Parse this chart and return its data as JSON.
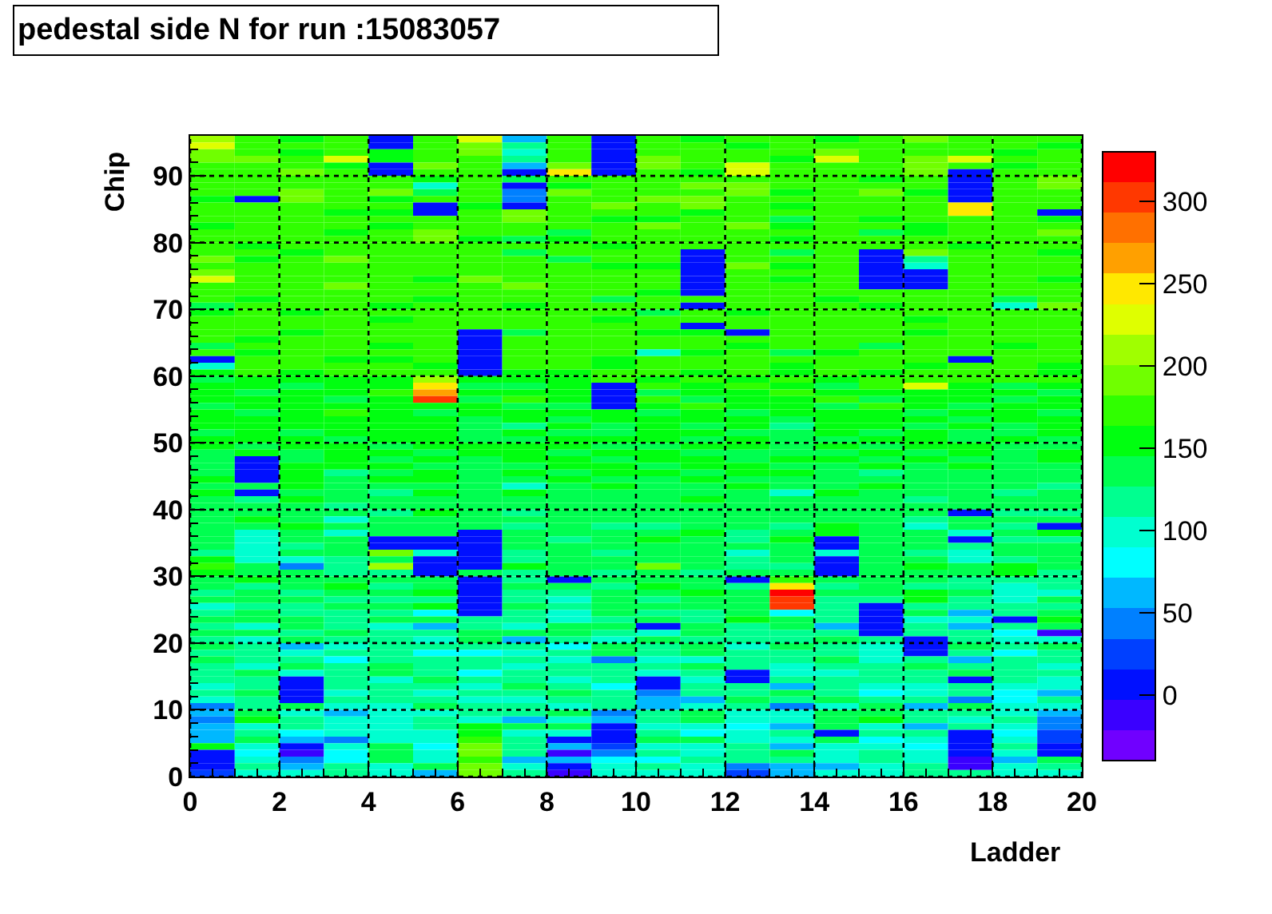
{
  "chart_data": {
    "type": "heatmap",
    "title": "pedestal side N for run :15083057",
    "xlabel": "Ladder",
    "ylabel": "Chip",
    "x": [
      0.5,
      1.5,
      2.5,
      3.5,
      4.5,
      5.5,
      6.5,
      7.5,
      8.5,
      9.5,
      10.5,
      11.5,
      12.5,
      13.5,
      14.5,
      15.5,
      16.5,
      17.5,
      18.5,
      19.5
    ],
    "xlim": [
      0,
      20
    ],
    "xticks": [
      0,
      2,
      4,
      6,
      8,
      10,
      12,
      14,
      16,
      18,
      20
    ],
    "ylim": [
      0,
      96
    ],
    "yticks": [
      0,
      10,
      20,
      30,
      40,
      50,
      60,
      70,
      80,
      90
    ],
    "clim": [
      -40,
      330
    ],
    "cticks": [
      0,
      50,
      100,
      150,
      200,
      250,
      300
    ],
    "grid": true,
    "cells": [
      [
        210,
        175,
        160,
        175,
        0,
        170,
        230,
        60,
        170,
        0,
        165,
        160,
        165,
        175,
        160,
        170,
        190,
        165,
        175,
        165
      ],
      [
        230,
        180,
        165,
        170,
        0,
        175,
        200,
        110,
        165,
        0,
        180,
        175,
        160,
        165,
        170,
        165,
        180,
        170,
        165,
        160
      ],
      [
        200,
        170,
        160,
        180,
        160,
        165,
        190,
        90,
        175,
        0,
        175,
        170,
        170,
        165,
        185,
        175,
        180,
        175,
        160,
        165
      ],
      [
        190,
        185,
        170,
        230,
        155,
        165,
        180,
        120,
        165,
        0,
        200,
        170,
        175,
        160,
        220,
        170,
        200,
        220,
        170,
        165
      ],
      [
        175,
        170,
        165,
        160,
        0,
        200,
        175,
        60,
        185,
        0,
        190,
        165,
        230,
        165,
        175,
        165,
        185,
        165,
        160,
        170
      ],
      [
        170,
        175,
        200,
        175,
        0,
        180,
        180,
        0,
        240,
        0,
        175,
        160,
        220,
        170,
        170,
        170,
        200,
        0,
        170,
        165
      ],
      [
        165,
        170,
        175,
        170,
        165,
        160,
        170,
        140,
        165,
        165,
        165,
        175,
        175,
        170,
        165,
        160,
        165,
        0,
        165,
        190
      ],
      [
        180,
        165,
        170,
        165,
        175,
        100,
        175,
        0,
        160,
        170,
        175,
        190,
        190,
        165,
        170,
        175,
        180,
        0,
        165,
        185
      ],
      [
        175,
        165,
        200,
        180,
        185,
        140,
        165,
        50,
        190,
        165,
        180,
        175,
        195,
        160,
        165,
        190,
        160,
        0,
        165,
        180
      ],
      [
        160,
        0,
        200,
        175,
        160,
        170,
        170,
        40,
        175,
        180,
        190,
        195,
        165,
        165,
        175,
        170,
        165,
        0,
        170,
        170
      ],
      [
        170,
        165,
        175,
        170,
        165,
        0,
        160,
        0,
        175,
        185,
        165,
        185,
        170,
        160,
        170,
        165,
        180,
        240,
        175,
        175
      ],
      [
        165,
        170,
        165,
        160,
        160,
        0,
        180,
        200,
        170,
        165,
        170,
        160,
        165,
        170,
        180,
        175,
        165,
        240,
        170,
        0
      ],
      [
        170,
        175,
        170,
        165,
        175,
        165,
        165,
        190,
        165,
        160,
        160,
        165,
        170,
        140,
        165,
        160,
        175,
        180,
        165,
        160
      ],
      [
        160,
        170,
        165,
        170,
        160,
        170,
        170,
        175,
        165,
        170,
        190,
        165,
        185,
        160,
        175,
        170,
        160,
        170,
        165,
        170
      ],
      [
        175,
        165,
        175,
        160,
        170,
        190,
        175,
        165,
        140,
        165,
        175,
        175,
        170,
        165,
        180,
        140,
        160,
        165,
        170,
        200
      ],
      [
        165,
        175,
        170,
        165,
        175,
        200,
        160,
        140,
        150,
        170,
        165,
        180,
        175,
        160,
        170,
        165,
        170,
        165,
        170,
        165
      ],
      [
        170,
        160,
        165,
        175,
        165,
        165,
        175,
        165,
        165,
        160,
        170,
        165,
        175,
        165,
        165,
        170,
        175,
        160,
        175,
        170
      ],
      [
        175,
        165,
        160,
        165,
        170,
        175,
        165,
        140,
        165,
        170,
        170,
        0,
        170,
        140,
        170,
        0,
        185,
        170,
        165,
        160
      ],
      [
        190,
        150,
        170,
        190,
        165,
        175,
        175,
        175,
        140,
        165,
        165,
        0,
        175,
        165,
        175,
        0,
        120,
        165,
        170,
        165
      ],
      [
        170,
        165,
        165,
        175,
        175,
        165,
        165,
        165,
        165,
        160,
        150,
        0,
        185,
        160,
        170,
        0,
        100,
        175,
        165,
        170
      ],
      [
        200,
        175,
        170,
        165,
        170,
        170,
        165,
        165,
        170,
        170,
        165,
        0,
        175,
        165,
        175,
        0,
        0,
        170,
        165,
        165
      ],
      [
        230,
        170,
        175,
        170,
        165,
        160,
        200,
        175,
        165,
        165,
        175,
        0,
        170,
        160,
        165,
        0,
        0,
        165,
        175,
        160
      ],
      [
        180,
        165,
        170,
        185,
        165,
        165,
        175,
        190,
        170,
        175,
        170,
        0,
        165,
        170,
        170,
        0,
        0,
        165,
        165,
        180
      ],
      [
        170,
        175,
        165,
        175,
        170,
        165,
        170,
        175,
        165,
        165,
        160,
        0,
        165,
        175,
        165,
        175,
        175,
        170,
        170,
        165
      ],
      [
        165,
        160,
        175,
        165,
        175,
        160,
        165,
        165,
        170,
        140,
        170,
        175,
        165,
        165,
        160,
        175,
        170,
        165,
        130,
        165
      ],
      [
        140,
        170,
        165,
        175,
        150,
        165,
        165,
        160,
        165,
        165,
        175,
        0,
        165,
        170,
        165,
        160,
        165,
        175,
        100,
        190
      ],
      [
        160,
        165,
        160,
        175,
        170,
        165,
        170,
        165,
        170,
        165,
        130,
        165,
        160,
        165,
        175,
        165,
        175,
        165,
        175,
        175
      ],
      [
        170,
        165,
        170,
        175,
        160,
        165,
        175,
        165,
        165,
        160,
        165,
        170,
        170,
        165,
        170,
        165,
        160,
        165,
        170,
        165
      ],
      [
        165,
        175,
        165,
        170,
        165,
        165,
        170,
        165,
        175,
        170,
        165,
        0,
        165,
        175,
        165,
        165,
        165,
        175,
        165,
        170
      ],
      [
        170,
        165,
        160,
        165,
        175,
        170,
        0,
        140,
        165,
        165,
        160,
        160,
        0,
        165,
        165,
        165,
        160,
        175,
        170,
        165
      ],
      [
        165,
        160,
        165,
        170,
        165,
        165,
        0,
        165,
        170,
        165,
        175,
        170,
        165,
        165,
        170,
        175,
        165,
        165,
        165,
        170
      ],
      [
        140,
        165,
        175,
        165,
        160,
        170,
        0,
        170,
        165,
        170,
        165,
        165,
        160,
        165,
        165,
        140,
        165,
        165,
        160,
        165
      ],
      [
        175,
        145,
        165,
        170,
        165,
        165,
        0,
        165,
        165,
        175,
        100,
        160,
        165,
        140,
        160,
        165,
        165,
        170,
        165,
        165
      ],
      [
        0,
        165,
        170,
        160,
        160,
        165,
        0,
        165,
        170,
        160,
        165,
        165,
        170,
        165,
        165,
        165,
        165,
        0,
        165,
        165
      ],
      [
        90,
        170,
        165,
        165,
        165,
        155,
        0,
        165,
        165,
        150,
        165,
        170,
        165,
        160,
        165,
        165,
        160,
        165,
        165,
        150
      ],
      [
        150,
        165,
        160,
        170,
        165,
        180,
        0,
        150,
        160,
        165,
        165,
        160,
        165,
        160,
        165,
        160,
        165,
        165,
        165,
        160
      ],
      [
        140,
        155,
        145,
        155,
        150,
        210,
        145,
        145,
        150,
        170,
        160,
        165,
        145,
        165,
        160,
        165,
        180,
        165,
        170,
        175
      ],
      [
        160,
        150,
        140,
        145,
        150,
        240,
        140,
        140,
        145,
        0,
        165,
        145,
        165,
        150,
        140,
        165,
        230,
        150,
        140,
        150
      ],
      [
        145,
        140,
        145,
        150,
        165,
        270,
        145,
        150,
        150,
        0,
        140,
        160,
        150,
        165,
        160,
        150,
        150,
        160,
        150,
        140
      ],
      [
        150,
        155,
        160,
        140,
        160,
        310,
        140,
        165,
        150,
        0,
        165,
        140,
        160,
        160,
        165,
        140,
        150,
        155,
        140,
        160
      ],
      [
        140,
        160,
        145,
        150,
        150,
        160,
        155,
        140,
        140,
        0,
        150,
        165,
        150,
        150,
        140,
        165,
        160,
        140,
        150,
        145
      ],
      [
        145,
        140,
        150,
        165,
        145,
        140,
        150,
        150,
        145,
        150,
        140,
        150,
        140,
        145,
        160,
        150,
        140,
        145,
        150,
        140
      ],
      [
        150,
        145,
        160,
        150,
        155,
        150,
        140,
        145,
        140,
        145,
        160,
        145,
        150,
        140,
        150,
        145,
        150,
        140,
        145,
        150
      ],
      [
        160,
        150,
        150,
        145,
        160,
        150,
        140,
        125,
        160,
        130,
        150,
        140,
        155,
        125,
        145,
        150,
        140,
        145,
        140,
        145
      ],
      [
        140,
        145,
        140,
        150,
        155,
        145,
        135,
        145,
        140,
        140,
        145,
        150,
        140,
        140,
        150,
        140,
        145,
        135,
        140,
        150
      ],
      [
        145,
        150,
        145,
        140,
        145,
        150,
        140,
        140,
        145,
        150,
        150,
        140,
        145,
        135,
        140,
        145,
        150,
        140,
        150,
        140
      ],
      [
        150,
        140,
        150,
        145,
        140,
        145,
        150,
        145,
        150,
        140,
        140,
        145,
        150,
        140,
        145,
        140,
        145,
        145,
        140,
        130
      ],
      [
        140,
        145,
        140,
        150,
        150,
        140,
        145,
        150,
        140,
        145,
        145,
        140,
        140,
        130,
        140,
        150,
        140,
        150,
        135,
        145
      ],
      [
        130,
        0,
        140,
        150,
        140,
        150,
        140,
        145,
        145,
        140,
        150,
        150,
        140,
        145,
        150,
        140,
        145,
        140,
        140,
        150
      ],
      [
        135,
        0,
        150,
        145,
        145,
        140,
        135,
        140,
        150,
        150,
        140,
        145,
        145,
        140,
        140,
        145,
        140,
        145,
        140,
        130
      ],
      [
        140,
        0,
        145,
        110,
        140,
        145,
        140,
        150,
        140,
        145,
        145,
        140,
        150,
        150,
        140,
        125,
        140,
        140,
        135,
        140
      ],
      [
        145,
        0,
        150,
        135,
        145,
        145,
        130,
        140,
        145,
        135,
        140,
        145,
        140,
        140,
        135,
        130,
        135,
        140,
        140,
        135
      ],
      [
        130,
        140,
        145,
        140,
        130,
        140,
        140,
        100,
        140,
        145,
        130,
        135,
        145,
        130,
        140,
        145,
        140,
        135,
        130,
        125
      ],
      [
        150,
        0,
        140,
        130,
        125,
        150,
        135,
        150,
        140,
        135,
        140,
        140,
        135,
        100,
        145,
        140,
        130,
        140,
        120,
        140
      ],
      [
        140,
        125,
        145,
        140,
        140,
        140,
        140,
        140,
        135,
        140,
        135,
        145,
        130,
        140,
        135,
        140,
        125,
        130,
        140,
        135
      ],
      [
        130,
        135,
        140,
        120,
        135,
        140,
        135,
        135,
        140,
        140,
        140,
        140,
        135,
        135,
        135,
        140,
        140,
        140,
        135,
        130
      ],
      [
        140,
        130,
        135,
        130,
        125,
        145,
        135,
        120,
        135,
        130,
        130,
        135,
        135,
        130,
        140,
        140,
        130,
        0,
        125,
        115
      ],
      [
        135,
        150,
        140,
        100,
        135,
        140,
        135,
        130,
        140,
        130,
        135,
        140,
        140,
        135,
        140,
        135,
        125,
        135,
        130,
        130
      ],
      [
        130,
        140,
        145,
        130,
        140,
        130,
        130,
        125,
        135,
        120,
        125,
        130,
        130,
        115,
        145,
        130,
        100,
        135,
        125,
        0
      ],
      [
        140,
        95,
        135,
        95,
        130,
        140,
        0,
        140,
        130,
        135,
        140,
        145,
        125,
        130,
        145,
        130,
        135,
        95,
        140,
        150
      ],
      [
        130,
        100,
        130,
        130,
        0,
        0,
        0,
        135,
        125,
        140,
        145,
        130,
        110,
        145,
        0,
        130,
        130,
        0,
        125,
        110
      ],
      [
        140,
        100,
        125,
        130,
        0,
        0,
        0,
        130,
        135,
        130,
        140,
        135,
        130,
        140,
        0,
        135,
        135,
        120,
        130,
        140
      ],
      [
        125,
        100,
        130,
        130,
        195,
        100,
        0,
        125,
        130,
        120,
        135,
        140,
        100,
        135,
        90,
        140,
        120,
        100,
        135,
        140
      ],
      [
        150,
        100,
        100,
        125,
        140,
        0,
        0,
        120,
        130,
        130,
        135,
        140,
        120,
        130,
        0,
        130,
        135,
        100,
        120,
        130
      ],
      [
        170,
        140,
        50,
        120,
        210,
        0,
        0,
        145,
        140,
        130,
        185,
        135,
        125,
        125,
        0,
        135,
        150,
        140,
        160,
        130
      ],
      [
        150,
        135,
        130,
        125,
        110,
        0,
        130,
        125,
        140,
        125,
        135,
        125,
        130,
        135,
        0,
        140,
        130,
        135,
        150,
        125
      ],
      [
        140,
        150,
        130,
        130,
        140,
        140,
        0,
        110,
        0,
        130,
        130,
        130,
        0,
        175,
        135,
        130,
        140,
        125,
        110,
        120
      ],
      [
        130,
        125,
        135,
        145,
        125,
        140,
        0,
        135,
        130,
        120,
        145,
        140,
        120,
        250,
        120,
        140,
        125,
        120,
        95,
        110
      ],
      [
        110,
        140,
        120,
        130,
        135,
        150,
        0,
        120,
        110,
        135,
        140,
        145,
        130,
        320,
        135,
        140,
        150,
        130,
        100,
        100
      ],
      [
        135,
        130,
        140,
        110,
        125,
        110,
        0,
        120,
        95,
        140,
        120,
        140,
        130,
        310,
        110,
        110,
        160,
        115,
        100,
        130
      ],
      [
        100,
        125,
        110,
        130,
        130,
        150,
        0,
        135,
        110,
        140,
        135,
        135,
        140,
        310,
        110,
        0,
        125,
        120,
        125,
        110
      ],
      [
        125,
        130,
        120,
        115,
        120,
        75,
        0,
        110,
        90,
        130,
        110,
        125,
        130,
        80,
        120,
        0,
        130,
        70,
        120,
        140
      ],
      [
        140,
        140,
        130,
        125,
        135,
        140,
        120,
        120,
        105,
        110,
        140,
        110,
        150,
        130,
        120,
        0,
        100,
        90,
        0,
        150
      ],
      [
        110,
        100,
        135,
        120,
        90,
        60,
        125,
        100,
        130,
        130,
        0,
        130,
        120,
        140,
        55,
        0,
        125,
        70,
        120,
        140
      ],
      [
        130,
        130,
        120,
        135,
        125,
        125,
        130,
        130,
        135,
        115,
        105,
        130,
        110,
        120,
        125,
        0,
        120,
        110,
        80,
        -10
      ],
      [
        120,
        100,
        130,
        120,
        115,
        100,
        130,
        60,
        125,
        100,
        130,
        120,
        120,
        125,
        140,
        110,
        0,
        115,
        100,
        100
      ],
      [
        130,
        120,
        65,
        100,
        125,
        115,
        120,
        110,
        80,
        130,
        120,
        140,
        100,
        130,
        120,
        90,
        0,
        130,
        110,
        130
      ],
      [
        125,
        125,
        105,
        115,
        110,
        75,
        75,
        100,
        120,
        140,
        110,
        130,
        125,
        110,
        120,
        95,
        0,
        120,
        75,
        120
      ],
      [
        130,
        110,
        120,
        75,
        120,
        110,
        120,
        115,
        95,
        40,
        90,
        105,
        120,
        110,
        140,
        100,
        110,
        70,
        120,
        110
      ],
      [
        110,
        100,
        130,
        110,
        140,
        120,
        110,
        95,
        125,
        120,
        110,
        140,
        125,
        100,
        115,
        120,
        130,
        120,
        115,
        100
      ],
      [
        120,
        130,
        100,
        120,
        130,
        110,
        75,
        120,
        110,
        125,
        95,
        110,
        0,
        100,
        105,
        115,
        110,
        130,
        110,
        120
      ],
      [
        115,
        120,
        0,
        120,
        100,
        130,
        125,
        110,
        105,
        125,
        0,
        105,
        0,
        115,
        110,
        125,
        120,
        0,
        120,
        90
      ],
      [
        105,
        110,
        0,
        110,
        120,
        115,
        100,
        130,
        125,
        80,
        0,
        110,
        120,
        60,
        120,
        100,
        100,
        110,
        100,
        95
      ],
      [
        110,
        130,
        0,
        100,
        110,
        100,
        120,
        110,
        130,
        115,
        40,
        120,
        115,
        130,
        110,
        80,
        90,
        120,
        75,
        70
      ],
      [
        100,
        115,
        0,
        120,
        110,
        120,
        100,
        90,
        110,
        125,
        60,
        60,
        130,
        110,
        130,
        120,
        110,
        50,
        80,
        110
      ],
      [
        50,
        120,
        140,
        100,
        90,
        130,
        120,
        110,
        100,
        125,
        60,
        90,
        110,
        50,
        100,
        130,
        60,
        130,
        100,
        100
      ],
      [
        55,
        130,
        100,
        70,
        100,
        100,
        115,
        120,
        130,
        45,
        110,
        130,
        90,
        100,
        140,
        140,
        115,
        110,
        95,
        60
      ],
      [
        50,
        150,
        110,
        100,
        90,
        120,
        100,
        70,
        90,
        60,
        120,
        130,
        100,
        105,
        130,
        150,
        110,
        90,
        110,
        40
      ],
      [
        60,
        100,
        110,
        100,
        95,
        110,
        150,
        140,
        130,
        0,
        100,
        100,
        80,
        60,
        130,
        100,
        70,
        110,
        100,
        50
      ],
      [
        55,
        115,
        80,
        105,
        100,
        95,
        150,
        100,
        100,
        0,
        115,
        80,
        100,
        110,
        0,
        110,
        110,
        0,
        80,
        20
      ],
      [
        65,
        130,
        60,
        45,
        100,
        105,
        175,
        110,
        0,
        0,
        140,
        140,
        100,
        90,
        130,
        80,
        100,
        0,
        90,
        20
      ],
      [
        150,
        105,
        0,
        100,
        130,
        80,
        190,
        120,
        70,
        30,
        100,
        95,
        120,
        70,
        90,
        100,
        80,
        0,
        110,
        0
      ],
      [
        0,
        75,
        -10,
        80,
        130,
        100,
        190,
        120,
        -20,
        50,
        110,
        100,
        120,
        130,
        90,
        120,
        90,
        0,
        100,
        0
      ],
      [
        0,
        90,
        40,
        80,
        130,
        100,
        175,
        60,
        70,
        75,
        80,
        110,
        120,
        110,
        100,
        110,
        90,
        -10,
        70,
        130
      ],
      [
        0,
        110,
        60,
        110,
        90,
        130,
        200,
        100,
        0,
        100,
        110,
        100,
        40,
        60,
        70,
        100,
        110,
        -10,
        90,
        110
      ],
      [
        20,
        100,
        90,
        110,
        100,
        60,
        200,
        110,
        -10,
        100,
        100,
        100,
        30,
        60,
        100,
        100,
        120,
        110,
        100,
        100
      ]
    ]
  }
}
